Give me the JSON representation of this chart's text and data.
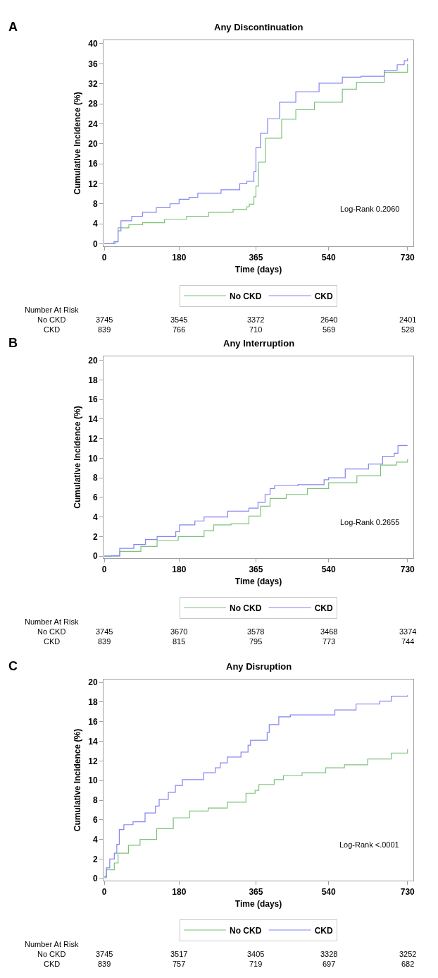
{
  "chart_data": [
    {
      "type": "step",
      "title": "Any Discontinuation",
      "xlabel": "Time (days)",
      "ylabel": "Cumulative Incidence (%)",
      "xlim": [
        -2,
        744
      ],
      "xticks": [
        0,
        180,
        365,
        540,
        730
      ],
      "ylim": [
        -0.5,
        40.7
      ],
      "yticks": [
        0,
        4,
        8,
        12,
        16,
        20,
        24,
        28,
        32,
        36,
        40
      ],
      "grid": false,
      "legend": "bottom",
      "line_style": "solid",
      "series": [
        {
          "name": "No CKD",
          "color": "#7cc27c",
          "x": [
            0,
            26,
            33,
            59,
            92,
            145,
            198,
            251,
            310,
            343,
            349,
            360,
            365,
            371,
            388,
            427,
            461,
            506,
            573,
            607,
            674,
            730
          ],
          "values": [
            0,
            0.4,
            3.2,
            3.8,
            4.2,
            4.9,
            5.5,
            6.3,
            6.9,
            7.4,
            7.9,
            9.4,
            11.5,
            16.3,
            21.1,
            24.9,
            26.8,
            28.3,
            30.9,
            32.3,
            34.3,
            35.9
          ]
        },
        {
          "name": "CKD",
          "color": "#8484f4",
          "x": [
            0,
            23,
            33,
            40,
            66,
            92,
            125,
            158,
            180,
            204,
            225,
            281,
            326,
            343,
            360,
            365,
            376,
            393,
            422,
            461,
            517,
            573,
            618,
            674,
            705,
            722,
            730
          ],
          "values": [
            0,
            0.4,
            2.6,
            4.6,
            5.5,
            6.3,
            7.2,
            8,
            8.9,
            9.3,
            10.1,
            10.8,
            12,
            12.5,
            14.4,
            19.2,
            22.1,
            25,
            28.3,
            30.4,
            32.1,
            33.3,
            33.5,
            34.7,
            35.8,
            36.6,
            37.1
          ]
        }
      ],
      "annotations": [
        "A",
        "Log-Rank 0.2060",
        "Number At Risk",
        "No CKD",
        "3745",
        "3545",
        "3372",
        "2640",
        "2401",
        "CKD",
        "839",
        "766",
        "710",
        "569",
        "528"
      ]
    },
    {
      "type": "step",
      "title": "Any Interruption",
      "xlabel": "Time (days)",
      "ylabel": "Cumulative Incidence (%)",
      "xlim": [
        -2,
        744
      ],
      "xticks": [
        0,
        180,
        365,
        540,
        730
      ],
      "ylim": [
        -0.2,
        20.4
      ],
      "yticks": [
        0,
        2,
        4,
        6,
        8,
        10,
        12,
        14,
        16,
        18,
        20
      ],
      "grid": false,
      "legend": "bottom",
      "line_style": "solid",
      "series": [
        {
          "name": "No CKD",
          "color": "#7cc27c",
          "x": [
            0,
            37,
            88,
            127,
            178,
            240,
            263,
            305,
            348,
            376,
            399,
            438,
            489,
            540,
            608,
            665,
            703,
            730
          ],
          "values": [
            0,
            0.5,
            1,
            1.6,
            2,
            2.6,
            3.2,
            3.3,
            4.1,
            5.1,
            5.9,
            6.3,
            6.9,
            7.5,
            8.2,
            9.3,
            9.6,
            9.9
          ]
        },
        {
          "name": "CKD",
          "color": "#8484f4",
          "x": [
            0,
            17,
            37,
            71,
            99,
            127,
            172,
            181,
            218,
            240,
            297,
            348,
            370,
            387,
            399,
            410,
            466,
            529,
            540,
            580,
            636,
            670,
            698,
            707,
            730
          ],
          "values": [
            0,
            0.05,
            0.8,
            1.2,
            1.7,
            2,
            2.5,
            3.2,
            3.6,
            4,
            4.6,
            4.9,
            5.5,
            6.3,
            6.9,
            7.2,
            7.3,
            7.8,
            8,
            8.9,
            9.4,
            10.2,
            10.5,
            11.3,
            11.3
          ]
        }
      ],
      "annotations": [
        "B",
        "Log-Rank 0.2655",
        "Number At Risk",
        "No CKD",
        "3745",
        "3670",
        "3578",
        "3468",
        "3374",
        "CKD",
        "839",
        "815",
        "795",
        "773",
        "744"
      ]
    },
    {
      "type": "step",
      "title": "Any Disruption",
      "xlabel": "Time (days)",
      "ylabel": "Cumulative Incidence (%)",
      "xlim": [
        -2,
        744
      ],
      "xticks": [
        0,
        180,
        365,
        540,
        730
      ],
      "ylim": [
        -0.2,
        20.3
      ],
      "yticks": [
        0,
        2,
        4,
        6,
        8,
        10,
        12,
        14,
        16,
        18,
        20
      ],
      "grid": false,
      "legend": "bottom",
      "line_style": "solid",
      "series": [
        {
          "name": "No CKD",
          "color": "#7cc27c",
          "x": [
            0,
            5,
            24,
            33,
            58,
            86,
            126,
            166,
            205,
            250,
            296,
            341,
            363,
            372,
            409,
            431,
            476,
            533,
            578,
            634,
            691,
            730
          ],
          "values": [
            0.1,
            0.9,
            1.6,
            2.6,
            3.4,
            4,
            5.1,
            6.2,
            6.9,
            7.2,
            7.8,
            8.7,
            9,
            9.6,
            10.1,
            10.5,
            10.8,
            11.3,
            11.6,
            12.2,
            12.8,
            13.2
          ]
        },
        {
          "name": "CKD",
          "color": "#8484f4",
          "x": [
            0,
            5,
            13,
            24,
            30,
            36,
            47,
            69,
            98,
            123,
            132,
            154,
            171,
            188,
            211,
            239,
            267,
            279,
            296,
            329,
            346,
            352,
            392,
            397,
            420,
            448,
            516,
            555,
            606,
            663,
            691,
            730
          ],
          "values": [
            0.2,
            1.1,
            2,
            2.6,
            3.5,
            5,
            5.5,
            5.8,
            6.7,
            7.4,
            8.1,
            8.8,
            9.5,
            10.1,
            10.1,
            10.8,
            11.3,
            11.8,
            12.4,
            12.9,
            13.6,
            14.1,
            14.9,
            15.7,
            16.5,
            16.7,
            16.7,
            17.2,
            17.8,
            18.1,
            18.6,
            18.7
          ]
        }
      ],
      "annotations": [
        "C",
        "Log-Rank <.0001",
        "Number At Risk",
        "No CKD",
        "3745",
        "3517",
        "3405",
        "3328",
        "3252",
        "CKD",
        "839",
        "757",
        "719",
        "697",
        "682"
      ]
    }
  ]
}
